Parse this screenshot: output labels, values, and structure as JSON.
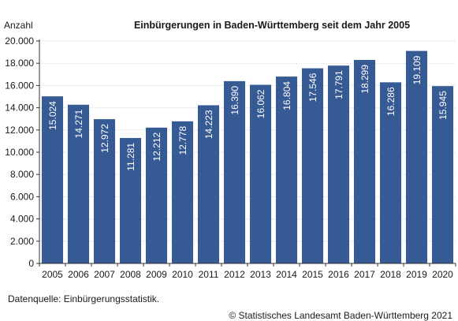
{
  "chart_data": {
    "type": "bar",
    "title": "Einbürgerungen in Baden-Württemberg seit dem Jahr 2005",
    "ylabel": "Anzahl",
    "xlabel": "",
    "categories": [
      "2005",
      "2006",
      "2007",
      "2008",
      "2009",
      "2010",
      "2011",
      "2012",
      "2013",
      "2014",
      "2015",
      "2016",
      "2017",
      "2018",
      "2019",
      "2020"
    ],
    "values": [
      15024,
      14271,
      12972,
      11281,
      12212,
      12778,
      14223,
      16390,
      16062,
      16804,
      17546,
      17791,
      18299,
      16286,
      19109,
      15945
    ],
    "value_labels": [
      "15.024",
      "14.271",
      "12.972",
      "11.281",
      "12.212",
      "12.778",
      "14.223",
      "16.390",
      "16.062",
      "16.804",
      "17.546",
      "17.791",
      "18.299",
      "16.286",
      "19.109",
      "15.945"
    ],
    "yticks": [
      0,
      2000,
      4000,
      6000,
      8000,
      10000,
      12000,
      14000,
      16000,
      18000,
      20000
    ],
    "ytick_labels": [
      "0",
      "2.000",
      "4.000",
      "6.000",
      "8.000",
      "10.000",
      "12.000",
      "14.000",
      "16.000",
      "18.000",
      "20.000"
    ],
    "ylim": [
      0,
      20000
    ],
    "grid": true,
    "legend": "none",
    "bar_color": "#365a94"
  },
  "footer": {
    "source": "Datenquelle: Einbürgerungsstatistik.",
    "copyright": "© Statistisches Landesamt Baden-Württemberg 2021"
  }
}
